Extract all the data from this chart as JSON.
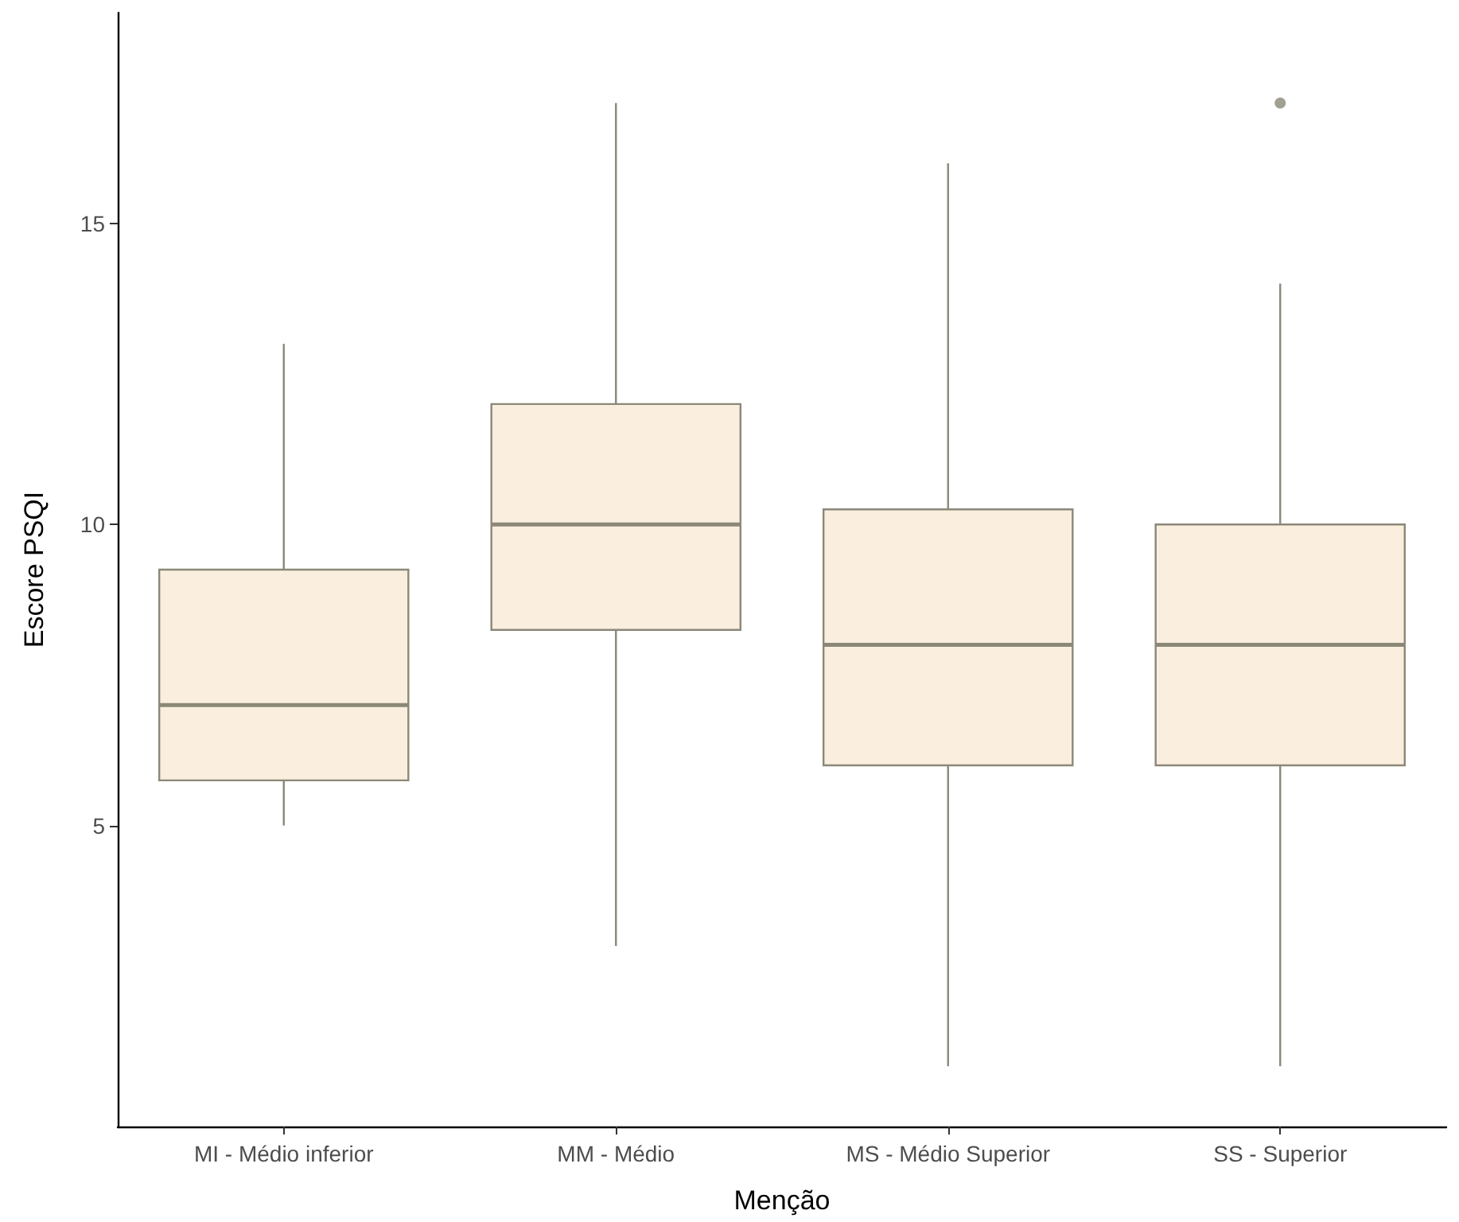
{
  "chart_data": {
    "type": "box",
    "xlabel": "Menção",
    "ylabel": "Escore PSQI",
    "categories": [
      "MI - Médio inferior",
      "MM - Médio",
      "MS - Médio Superior",
      "SS - Superior"
    ],
    "series": [
      {
        "color": "#faeedf",
        "boxes": [
          {
            "low": 5,
            "q1": 5.75,
            "median": 7,
            "q3": 9.25,
            "high": 13
          },
          {
            "low": 3,
            "q1": 8.25,
            "median": 10,
            "q3": 12,
            "high": 17
          },
          {
            "low": 1,
            "q1": 6,
            "median": 8,
            "q3": 10.25,
            "high": 16
          },
          {
            "low": 1,
            "q1": 6,
            "median": 8,
            "q3": 10,
            "high": 14,
            "outliers": [
              17
            ]
          }
        ]
      }
    ],
    "ylim": [
      0,
      18.5
    ],
    "yticks": [
      5,
      10,
      15
    ]
  }
}
